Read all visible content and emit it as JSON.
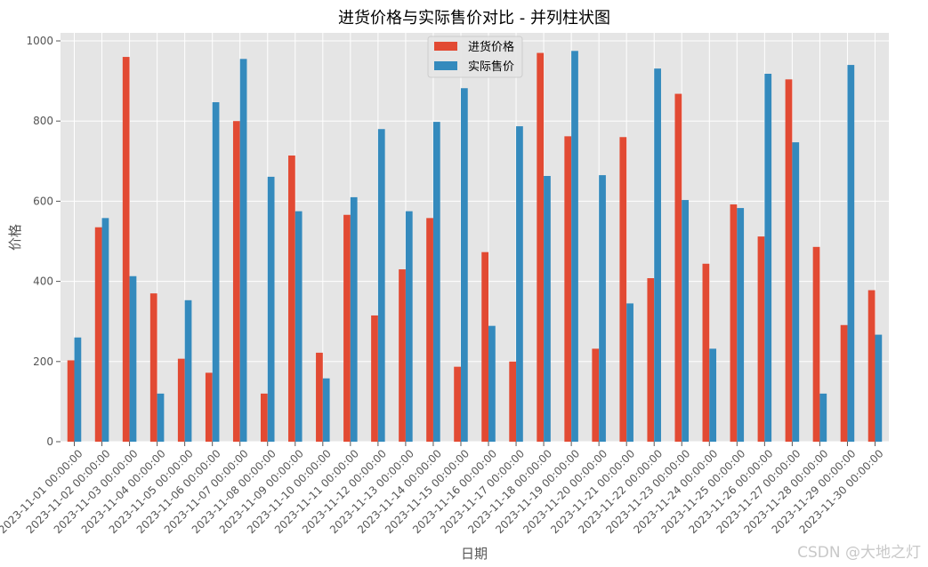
{
  "chart_data": {
    "type": "bar",
    "title": "进货价格与实际售价对比 - 并列柱状图",
    "xlabel": "日期",
    "ylabel": "价格",
    "ylim": [
      0,
      1020
    ],
    "yticks": [
      0,
      200,
      400,
      600,
      800,
      1000
    ],
    "grid": true,
    "legend_position": "top-center",
    "categories": [
      "2023-11-01 00:00:00",
      "2023-11-02 00:00:00",
      "2023-11-03 00:00:00",
      "2023-11-04 00:00:00",
      "2023-11-05 00:00:00",
      "2023-11-06 00:00:00",
      "2023-11-07 00:00:00",
      "2023-11-08 00:00:00",
      "2023-11-09 00:00:00",
      "2023-11-10 00:00:00",
      "2023-11-11 00:00:00",
      "2023-11-12 00:00:00",
      "2023-11-13 00:00:00",
      "2023-11-14 00:00:00",
      "2023-11-15 00:00:00",
      "2023-11-16 00:00:00",
      "2023-11-17 00:00:00",
      "2023-11-18 00:00:00",
      "2023-11-19 00:00:00",
      "2023-11-20 00:00:00",
      "2023-11-21 00:00:00",
      "2023-11-22 00:00:00",
      "2023-11-23 00:00:00",
      "2023-11-24 00:00:00",
      "2023-11-25 00:00:00",
      "2023-11-26 00:00:00",
      "2023-11-27 00:00:00",
      "2023-11-28 00:00:00",
      "2023-11-29 00:00:00",
      "2023-11-30 00:00:00"
    ],
    "series": [
      {
        "name": "进货价格",
        "color": "#E24A33",
        "values": [
          203,
          535,
          960,
          370,
          207,
          172,
          800,
          120,
          714,
          222,
          566,
          315,
          430,
          558,
          187,
          473,
          200,
          970,
          762,
          232,
          760,
          408,
          868,
          444,
          592,
          512,
          904,
          486,
          291,
          378
        ]
      },
      {
        "name": "实际售价",
        "color": "#348ABD",
        "values": [
          260,
          558,
          413,
          120,
          353,
          847,
          955,
          661,
          575,
          158,
          610,
          780,
          575,
          798,
          882,
          289,
          787,
          663,
          975,
          665,
          345,
          931,
          603,
          232,
          583,
          918,
          747,
          120,
          940,
          267
        ]
      }
    ]
  },
  "watermark": "CSDN @大地之灯"
}
